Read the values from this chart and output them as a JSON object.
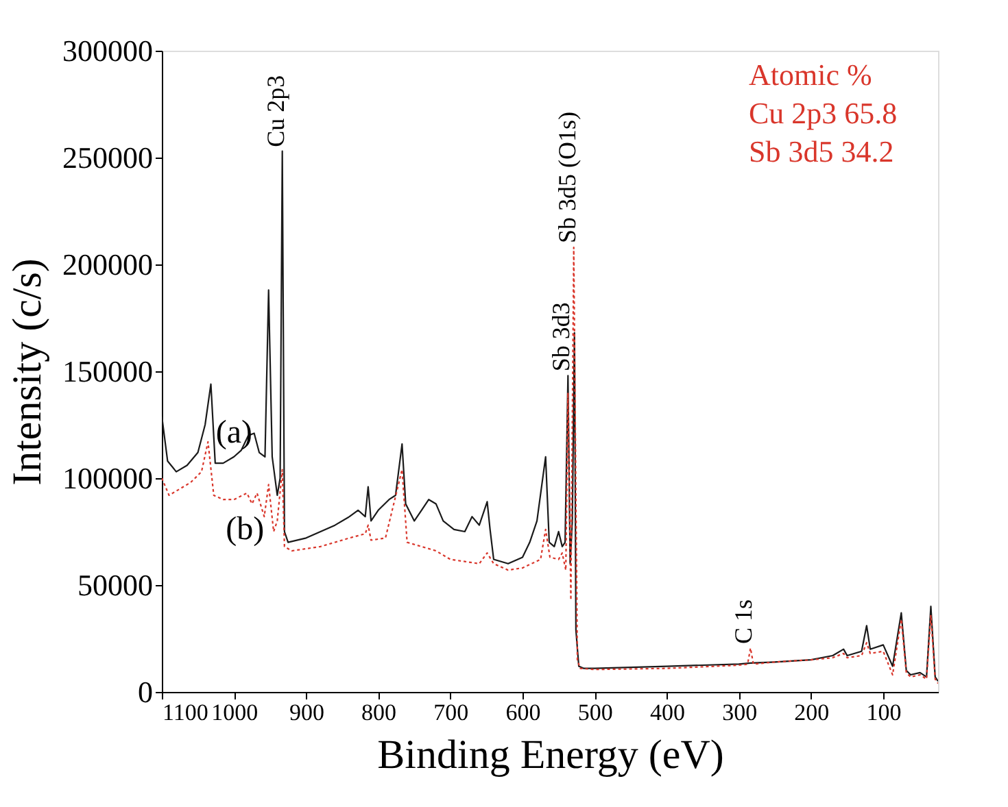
{
  "chart_data": {
    "type": "line",
    "xlabel": "Binding Energy (eV)",
    "ylabel": "Intensity (c/s)",
    "xlim": [
      1100,
      24
    ],
    "xticks": [
      1100,
      1000,
      900,
      800,
      700,
      600,
      500,
      400,
      300,
      200,
      100
    ],
    "ylim": [
      0,
      300000
    ],
    "yticks": [
      0,
      50000,
      100000,
      150000,
      200000,
      250000,
      300000
    ],
    "marker": "none",
    "series": [
      {
        "name": "(a)",
        "color": "#1a1a1a",
        "line_style": "solid",
        "x": [
          1100,
          1092,
          1080,
          1065,
          1050,
          1040,
          1032,
          1026,
          1015,
          1000,
          990,
          980,
          972,
          965,
          957,
          952,
          947,
          940,
          936,
          933,
          930,
          925,
          900,
          880,
          860,
          840,
          828,
          818,
          814,
          810,
          800,
          785,
          776,
          767,
          762,
          750,
          740,
          730,
          720,
          710,
          695,
          680,
          670,
          660,
          649,
          645,
          640,
          620,
          600,
          590,
          580,
          568,
          563,
          556,
          550,
          545,
          541,
          537,
          534,
          531,
          528,
          526,
          522,
          515,
          500,
          400,
          300,
          284,
          250,
          200,
          170,
          155,
          150,
          130,
          123,
          118,
          100,
          87,
          75,
          68,
          62,
          49,
          40,
          34,
          28,
          24
        ],
        "values": [
          129000,
          108000,
          103000,
          106000,
          112000,
          125000,
          144000,
          107000,
          107000,
          110000,
          113000,
          120000,
          121000,
          112000,
          110000,
          188000,
          110000,
          92000,
          100000,
          253000,
          75000,
          70000,
          72000,
          75000,
          78000,
          82000,
          85000,
          82000,
          96000,
          80000,
          85000,
          90000,
          92000,
          116000,
          88000,
          80000,
          85000,
          90000,
          88000,
          80000,
          76000,
          75000,
          82000,
          78000,
          89000,
          76000,
          62000,
          60000,
          63000,
          70000,
          80000,
          110000,
          70000,
          68000,
          75000,
          68000,
          70000,
          148000,
          60000,
          80000,
          168000,
          29000,
          12000,
          11000,
          11000,
          12000,
          13000,
          13500,
          14000,
          15000,
          17000,
          20000,
          17000,
          19000,
          31000,
          20000,
          22000,
          12000,
          37000,
          10000,
          8000,
          9000,
          7000,
          40000,
          7000,
          5000
        ]
      },
      {
        "name": "(b)",
        "color": "#d9362b",
        "line_style": "dotted",
        "x": [
          1100,
          1090,
          1075,
          1060,
          1045,
          1036,
          1028,
          1015,
          1000,
          982,
          975,
          968,
          958,
          952,
          945,
          940,
          933,
          930,
          920,
          880,
          840,
          818,
          814,
          810,
          790,
          767,
          760,
          740,
          720,
          700,
          680,
          660,
          649,
          640,
          620,
          600,
          575,
          568,
          562,
          550,
          545,
          540,
          537,
          533,
          529,
          524,
          520,
          500,
          400,
          300,
          288,
          284,
          280,
          250,
          200,
          170,
          155,
          150,
          130,
          123,
          118,
          100,
          87,
          75,
          68,
          62,
          49,
          40,
          34,
          28,
          24
        ],
        "values": [
          100000,
          92000,
          95000,
          98000,
          103000,
          117000,
          92000,
          90000,
          90000,
          93000,
          88000,
          93000,
          82000,
          97000,
          75000,
          80000,
          104000,
          68000,
          66000,
          68000,
          72000,
          74000,
          78000,
          71000,
          72000,
          104000,
          70000,
          68000,
          66000,
          62000,
          61000,
          60000,
          65000,
          60000,
          57000,
          58000,
          62000,
          76000,
          63000,
          62000,
          65000,
          57000,
          140000,
          43000,
          208000,
          15000,
          11000,
          10500,
          11000,
          12500,
          13000,
          20500,
          13000,
          14000,
          15000,
          16000,
          18000,
          16000,
          17000,
          23000,
          18000,
          19000,
          8000,
          34000,
          9000,
          7000,
          8000,
          6000,
          36000,
          6000,
          4000
        ]
      }
    ],
    "annotations": [
      {
        "text": "Cu 2p3",
        "x": 933,
        "y": 253000
      },
      {
        "text": "Sb 3d3",
        "x": 537,
        "y": 148000
      },
      {
        "text": "Sb 3d5 (O1s)",
        "x": 529,
        "y": 208000
      },
      {
        "text": "C 1s",
        "x": 284,
        "y": 20500
      },
      "Atomic %",
      "Cu 2p3 65.8",
      "Sb 3d5 34.2"
    ]
  }
}
